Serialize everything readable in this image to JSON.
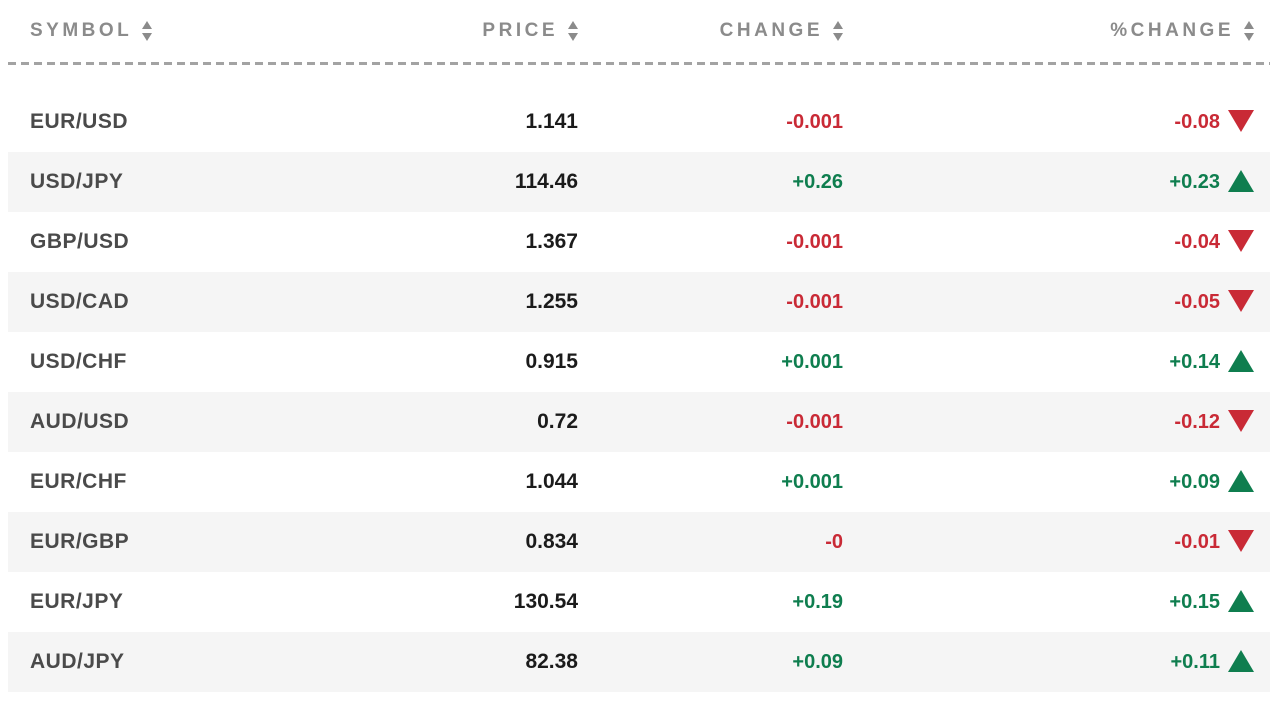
{
  "table": {
    "columns": [
      {
        "key": "symbol",
        "label": "SYMBOL",
        "align": "left",
        "sortable": true
      },
      {
        "key": "price",
        "label": "PRICE",
        "align": "right",
        "sortable": true
      },
      {
        "key": "change",
        "label": "CHANGE",
        "align": "right",
        "sortable": true
      },
      {
        "key": "pct_change",
        "label": "%CHANGE",
        "align": "right",
        "sortable": true
      }
    ],
    "rows": [
      {
        "symbol": "EUR/USD",
        "price": "1.141",
        "change": "-0.001",
        "pct_change": "-0.08",
        "direction": "down"
      },
      {
        "symbol": "USD/JPY",
        "price": "114.46",
        "change": "+0.26",
        "pct_change": "+0.23",
        "direction": "up"
      },
      {
        "symbol": "GBP/USD",
        "price": "1.367",
        "change": "-0.001",
        "pct_change": "-0.04",
        "direction": "down"
      },
      {
        "symbol": "USD/CAD",
        "price": "1.255",
        "change": "-0.001",
        "pct_change": "-0.05",
        "direction": "down"
      },
      {
        "symbol": "USD/CHF",
        "price": "0.915",
        "change": "+0.001",
        "pct_change": "+0.14",
        "direction": "up"
      },
      {
        "symbol": "AUD/USD",
        "price": "0.72",
        "change": "-0.001",
        "pct_change": "-0.12",
        "direction": "down"
      },
      {
        "symbol": "EUR/CHF",
        "price": "1.044",
        "change": "+0.001",
        "pct_change": "+0.09",
        "direction": "up"
      },
      {
        "symbol": "EUR/GBP",
        "price": "0.834",
        "change": "-0",
        "pct_change": "-0.01",
        "direction": "down"
      },
      {
        "symbol": "EUR/JPY",
        "price": "130.54",
        "change": "+0.19",
        "pct_change": "+0.15",
        "direction": "up"
      },
      {
        "symbol": "AUD/JPY",
        "price": "82.38",
        "change": "+0.09",
        "pct_change": "+0.11",
        "direction": "up"
      }
    ]
  },
  "colors": {
    "up": "#0f7e4f",
    "down": "#c92a36",
    "header_text": "#8b8b8b",
    "symbol_text": "#4a4a4a",
    "price_text": "#1b1b1b",
    "alt_row_bg": "#f5f5f5",
    "divider": "#a3a3a3"
  }
}
